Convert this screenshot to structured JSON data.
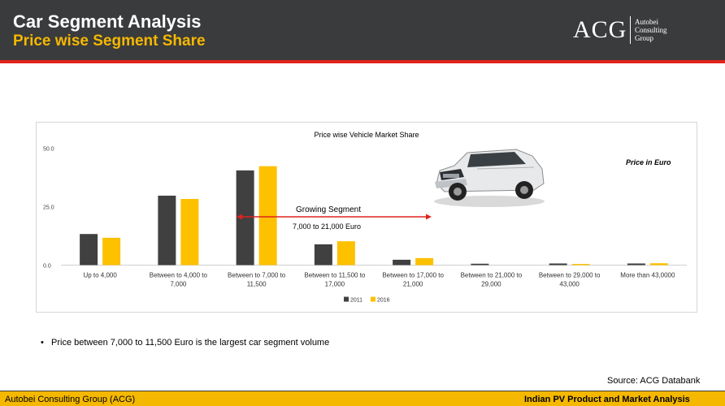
{
  "header": {
    "title": "Car Segment Analysis",
    "subtitle": "Price wise Segment Share",
    "logo_mark": "ACG",
    "logo_lines": [
      "Autobei",
      "Consulting",
      "Group"
    ]
  },
  "colors": {
    "header_bg": "#3a3b3d",
    "accent_red": "#e0231d",
    "accent_yellow": "#f5b800",
    "series_2011": "#404040",
    "series_2016": "#fdc100"
  },
  "annotations": {
    "price_note": "Price in Euro",
    "growing_segment": "Growing Segment",
    "growing_range": "7,000 to 21,000 Euro"
  },
  "body": {
    "bullet": "•",
    "bullet_text": "Price between 7,000 to 11,500 Euro is the largest car segment volume",
    "source": "Source: ACG Databank"
  },
  "footer": {
    "left": "Autobei Consulting Group (ACG)",
    "right": "Indian PV Product and Market Analysis"
  },
  "chart_data": {
    "type": "bar",
    "title": "Price wise Vehicle Market Share",
    "categories": [
      [
        "Up to 4,000"
      ],
      [
        "Between to 4,000 to",
        "7,000"
      ],
      [
        "Between to 7,000 to",
        "11,500"
      ],
      [
        "Between to 11,500 to",
        "17,000"
      ],
      [
        "Between to 17,000 to",
        "21,000"
      ],
      [
        "Between to 21,000 to",
        "29,000"
      ],
      [
        "Between to 29,000 to",
        "43,000"
      ],
      [
        "More than 43,0000"
      ]
    ],
    "series": [
      {
        "name": "2011",
        "color": "#404040",
        "values": [
          13.3,
          29.7,
          40.5,
          8.9,
          2.3,
          0.6,
          0.7,
          0.7
        ]
      },
      {
        "name": "2016",
        "color": "#fdc100",
        "values": [
          11.7,
          28.3,
          42.3,
          10.2,
          3.0,
          0.0,
          0.5,
          0.8
        ]
      }
    ],
    "ylim": [
      0,
      50
    ],
    "yticks": [
      0,
      25,
      50
    ],
    "ytick_labels": [
      "0.0",
      "25.0",
      "50.0"
    ],
    "grid": false,
    "legend_position": "bottom"
  }
}
